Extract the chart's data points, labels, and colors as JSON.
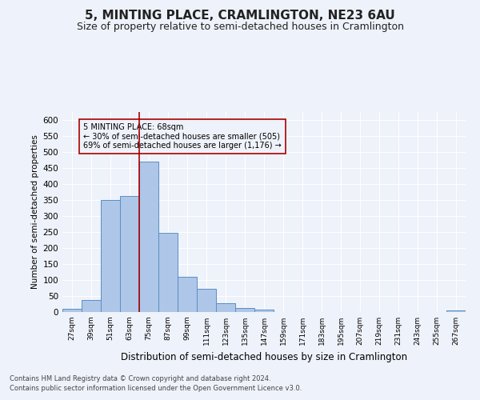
{
  "title": "5, MINTING PLACE, CRAMLINGTON, NE23 6AU",
  "subtitle": "Size of property relative to semi-detached houses in Cramlington",
  "xlabel": "Distribution of semi-detached houses by size in Cramlington",
  "ylabel": "Number of semi-detached properties",
  "footnote1": "Contains HM Land Registry data © Crown copyright and database right 2024.",
  "footnote2": "Contains public sector information licensed under the Open Government Licence v3.0.",
  "annotation_title": "5 MINTING PLACE: 68sqm",
  "annotation_line2": "← 30% of semi-detached houses are smaller (505)",
  "annotation_line3": "69% of semi-detached houses are larger (1,176) →",
  "property_size": 68,
  "bar_color": "#aec6e8",
  "bar_edge_color": "#5a8fc3",
  "vline_color": "#aa0000",
  "background_color": "#eef2fa",
  "categories": [
    "27sqm",
    "39sqm",
    "51sqm",
    "63sqm",
    "75sqm",
    "87sqm",
    "99sqm",
    "111sqm",
    "123sqm",
    "135sqm",
    "147sqm",
    "159sqm",
    "171sqm",
    "183sqm",
    "195sqm",
    "207sqm",
    "219sqm",
    "231sqm",
    "243sqm",
    "255sqm",
    "267sqm"
  ],
  "bin_edges": [
    21,
    33,
    45,
    57,
    69,
    81,
    93,
    105,
    117,
    129,
    141,
    153,
    165,
    177,
    189,
    201,
    213,
    225,
    237,
    249,
    261,
    273
  ],
  "values": [
    10,
    38,
    350,
    363,
    470,
    248,
    110,
    72,
    27,
    12,
    8,
    0,
    0,
    0,
    0,
    0,
    0,
    0,
    0,
    0,
    5
  ],
  "ylim": [
    0,
    625
  ],
  "yticks": [
    0,
    50,
    100,
    150,
    200,
    250,
    300,
    350,
    400,
    450,
    500,
    550,
    600
  ],
  "grid_color": "#ffffff",
  "title_fontsize": 11,
  "subtitle_fontsize": 9
}
